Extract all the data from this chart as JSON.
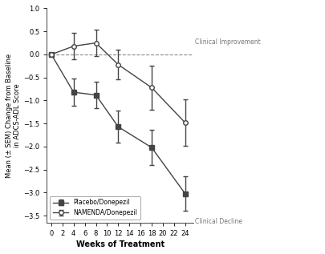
{
  "weeks": [
    0,
    4,
    8,
    12,
    18,
    24
  ],
  "placebo_mean": [
    0.0,
    -0.82,
    -0.88,
    -1.57,
    -2.02,
    -3.02
  ],
  "placebo_sem": [
    0.0,
    0.3,
    0.28,
    0.35,
    0.38,
    0.38
  ],
  "namenda_mean": [
    0.0,
    0.18,
    0.25,
    -0.22,
    -0.72,
    -1.48
  ],
  "namenda_sem": [
    0.0,
    0.28,
    0.28,
    0.32,
    0.48,
    0.5
  ],
  "line_color": "#444444",
  "dashed_color": "#888888",
  "xlabel": "Weeks of Treatment",
  "ylabel": "Mean (± SEM) Change from Baseline\nin ADCS-ADL Score",
  "xlim": [
    -0.8,
    25.5
  ],
  "ylim": [
    -3.65,
    0.85
  ],
  "xticks": [
    0,
    2,
    4,
    6,
    8,
    10,
    12,
    14,
    16,
    18,
    20,
    22,
    24
  ],
  "yticks": [
    -3.5,
    -3.0,
    -2.5,
    -2.0,
    -1.5,
    -1.0,
    -0.5,
    0.0,
    0.5,
    1.0
  ],
  "legend_labels": [
    "Placebo/Donepezil",
    "NAMENDA/Donepezil"
  ],
  "annotation_improvement": "Clinical Improvement",
  "annotation_decline": "Clinical Decline"
}
